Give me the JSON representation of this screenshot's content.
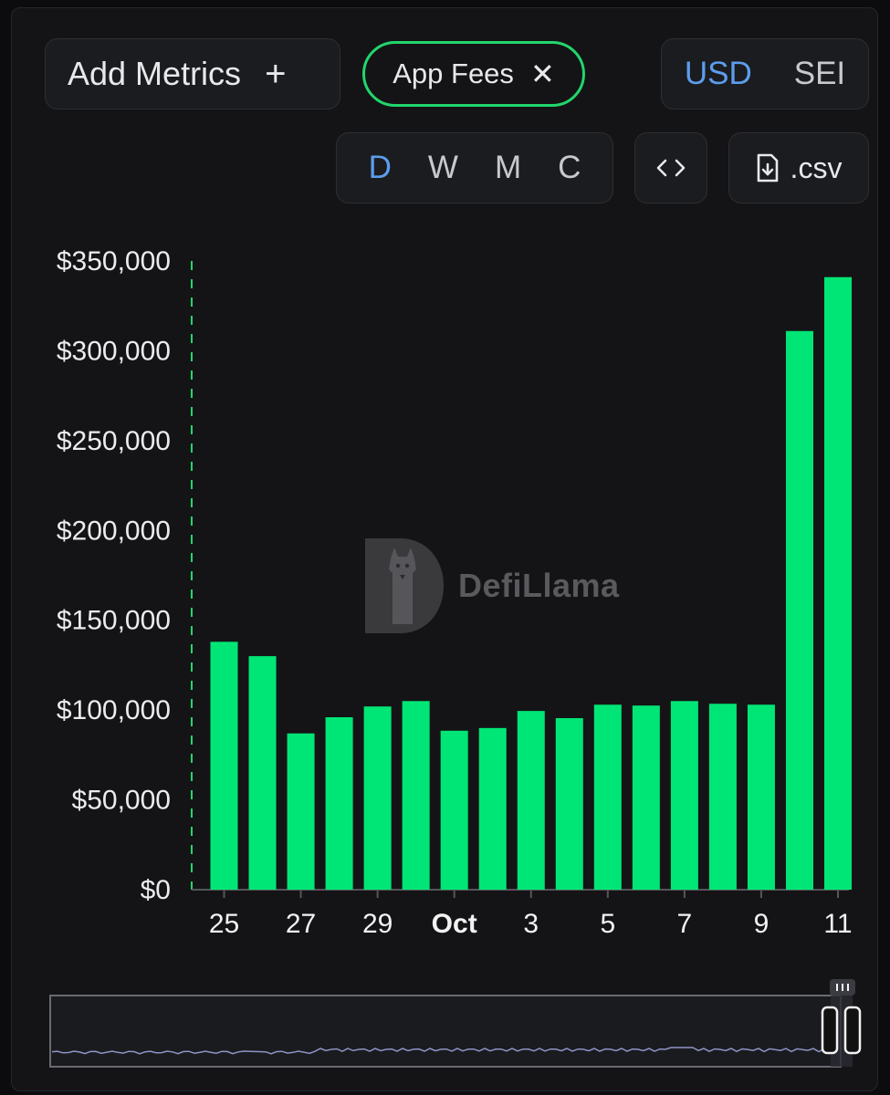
{
  "toolbar": {
    "add_metrics_label": "Add Metrics",
    "add_icon": "plus-icon",
    "metric_chip_label": "App Fees",
    "remove_icon": "close-icon",
    "currency_options": [
      "USD",
      "SEI"
    ],
    "currency_selected": "USD",
    "interval_options": [
      "D",
      "W",
      "M",
      "C"
    ],
    "interval_selected": "D",
    "embed_icon": "code-brackets-icon",
    "csv_icon": "file-download-icon",
    "csv_label": ".csv"
  },
  "watermark": {
    "text": "DefiLlama",
    "icon": "defillama-llama-logo"
  },
  "colors": {
    "bar": "#00e676",
    "accent_blue": "#5c9ded",
    "chip_border": "#22d66c",
    "background": "#141416",
    "brush_line": "#8f93c8"
  },
  "chart_data": {
    "type": "bar",
    "title": "",
    "xlabel": "",
    "ylabel": "",
    "x_tick_labels": [
      "25",
      "27",
      "29",
      "Oct",
      "3",
      "5",
      "7",
      "9",
      "11"
    ],
    "y_tick_labels": [
      "$0",
      "$50,000",
      "$100,000",
      "$150,000",
      "$200,000",
      "$250,000",
      "$300,000",
      "$350,000"
    ],
    "y_ticks": [
      0,
      50000,
      100000,
      150000,
      200000,
      250000,
      300000,
      350000
    ],
    "ylim": [
      0,
      350000
    ],
    "categories": [
      "Sep 25",
      "Sep 26",
      "Sep 27",
      "Sep 28",
      "Sep 29",
      "Sep 30",
      "Oct 1",
      "Oct 2",
      "Oct 3",
      "Oct 4",
      "Oct 5",
      "Oct 6",
      "Oct 7",
      "Oct 8",
      "Oct 9",
      "Oct 10",
      "Oct 11"
    ],
    "series": [
      {
        "values": [
          138000,
          130000,
          87000,
          96000,
          102000,
          105000,
          88500,
          90000,
          99500,
          95500,
          103000,
          102500,
          105000,
          103500,
          103000,
          311000,
          341000
        ]
      }
    ],
    "grid": false,
    "legend": "none",
    "brush_overview": {
      "range_selected": "end",
      "spike_present": true
    }
  }
}
